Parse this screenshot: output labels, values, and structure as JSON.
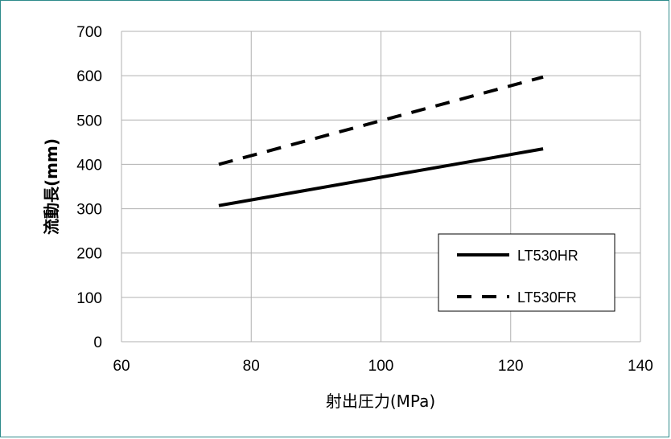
{
  "chart_data": {
    "type": "line",
    "title": "",
    "xlabel": "射出圧力(MPa)",
    "ylabel": "流動長(mm)",
    "xlim": [
      60,
      140
    ],
    "ylim": [
      0,
      700
    ],
    "xticks": [
      60,
      80,
      100,
      120,
      140
    ],
    "yticks": [
      0,
      100,
      200,
      300,
      400,
      500,
      600,
      700
    ],
    "grid": true,
    "legend_position": "bottom-right",
    "series": [
      {
        "name": "LT530HR",
        "style": "solid",
        "color": "#000000",
        "x": [
          75,
          125
        ],
        "y": [
          307,
          435
        ]
      },
      {
        "name": "LT530FR",
        "style": "dashed",
        "color": "#000000",
        "x": [
          75,
          125
        ],
        "y": [
          400,
          597
        ]
      }
    ]
  }
}
